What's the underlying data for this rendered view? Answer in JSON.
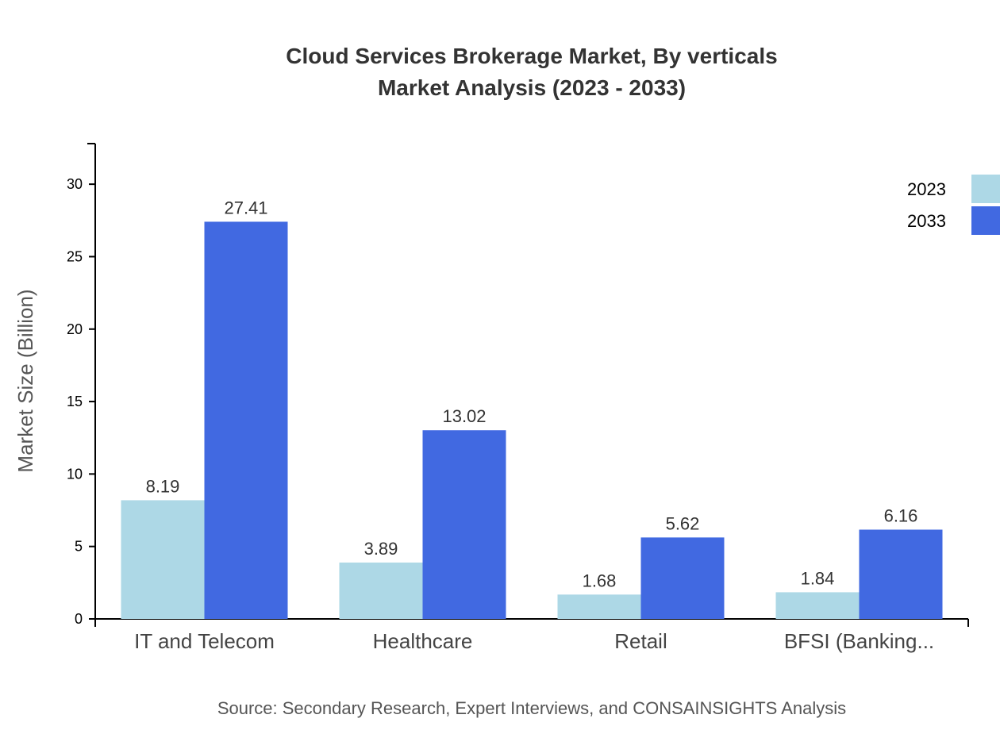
{
  "chart_data": {
    "type": "bar",
    "title": "Cloud Services Brokerage Market, By verticals",
    "subtitle": "Market Analysis (2023 - 2033)",
    "xlabel": "",
    "ylabel": "Market Size (Billion)",
    "ylim": [
      0,
      32.8
    ],
    "yticks": [
      0,
      5,
      10,
      15,
      20,
      25,
      30
    ],
    "categories": [
      "IT and Telecom",
      "Healthcare",
      "Retail",
      "BFSI (Banking..."
    ],
    "series": [
      {
        "name": "2023",
        "color": "#add8e6",
        "values": [
          8.19,
          3.89,
          1.68,
          1.84
        ]
      },
      {
        "name": "2033",
        "color": "#4169e1",
        "values": [
          27.41,
          13.02,
          5.62,
          6.16
        ]
      }
    ],
    "grid": false,
    "legend": "top-right",
    "source": "Source: Secondary Research, Expert Interviews, and CONSAINSIGHTS Analysis"
  }
}
